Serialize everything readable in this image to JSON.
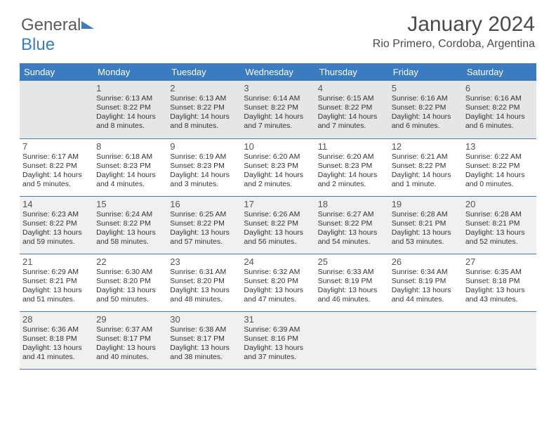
{
  "brand": {
    "part1": "General",
    "part2": "Blue"
  },
  "header": {
    "month_year": "January 2024",
    "location": "Rio Primero, Cordoba, Argentina"
  },
  "style": {
    "accent_color": "#3b7bbf",
    "header_text_color": "#ffffff",
    "body_text_color": "#333333",
    "daynum_color": "#555555",
    "row_alt_bg": "#f0f0f0",
    "row_bg": "#ffffff",
    "page_bg": "#ffffff",
    "font_family": "Arial",
    "title_fontsize_pt": 22,
    "location_fontsize_pt": 12,
    "dayheader_fontsize_pt": 10,
    "daynum_fontsize_pt": 10,
    "info_fontsize_pt": 8
  },
  "day_headers": [
    "Sunday",
    "Monday",
    "Tuesday",
    "Wednesday",
    "Thursday",
    "Friday",
    "Saturday"
  ],
  "weeks": [
    [
      {
        "n": "",
        "sr": "",
        "ss": "",
        "dl": ""
      },
      {
        "n": "1",
        "sr": "6:13 AM",
        "ss": "8:22 PM",
        "dl": "14 hours and 8 minutes."
      },
      {
        "n": "2",
        "sr": "6:13 AM",
        "ss": "8:22 PM",
        "dl": "14 hours and 8 minutes."
      },
      {
        "n": "3",
        "sr": "6:14 AM",
        "ss": "8:22 PM",
        "dl": "14 hours and 7 minutes."
      },
      {
        "n": "4",
        "sr": "6:15 AM",
        "ss": "8:22 PM",
        "dl": "14 hours and 7 minutes."
      },
      {
        "n": "5",
        "sr": "6:16 AM",
        "ss": "8:22 PM",
        "dl": "14 hours and 6 minutes."
      },
      {
        "n": "6",
        "sr": "6:16 AM",
        "ss": "8:22 PM",
        "dl": "14 hours and 6 minutes."
      }
    ],
    [
      {
        "n": "7",
        "sr": "6:17 AM",
        "ss": "8:22 PM",
        "dl": "14 hours and 5 minutes."
      },
      {
        "n": "8",
        "sr": "6:18 AM",
        "ss": "8:23 PM",
        "dl": "14 hours and 4 minutes."
      },
      {
        "n": "9",
        "sr": "6:19 AM",
        "ss": "8:23 PM",
        "dl": "14 hours and 3 minutes."
      },
      {
        "n": "10",
        "sr": "6:20 AM",
        "ss": "8:23 PM",
        "dl": "14 hours and 2 minutes."
      },
      {
        "n": "11",
        "sr": "6:20 AM",
        "ss": "8:23 PM",
        "dl": "14 hours and 2 minutes."
      },
      {
        "n": "12",
        "sr": "6:21 AM",
        "ss": "8:22 PM",
        "dl": "14 hours and 1 minute."
      },
      {
        "n": "13",
        "sr": "6:22 AM",
        "ss": "8:22 PM",
        "dl": "14 hours and 0 minutes."
      }
    ],
    [
      {
        "n": "14",
        "sr": "6:23 AM",
        "ss": "8:22 PM",
        "dl": "13 hours and 59 minutes."
      },
      {
        "n": "15",
        "sr": "6:24 AM",
        "ss": "8:22 PM",
        "dl": "13 hours and 58 minutes."
      },
      {
        "n": "16",
        "sr": "6:25 AM",
        "ss": "8:22 PM",
        "dl": "13 hours and 57 minutes."
      },
      {
        "n": "17",
        "sr": "6:26 AM",
        "ss": "8:22 PM",
        "dl": "13 hours and 56 minutes."
      },
      {
        "n": "18",
        "sr": "6:27 AM",
        "ss": "8:22 PM",
        "dl": "13 hours and 54 minutes."
      },
      {
        "n": "19",
        "sr": "6:28 AM",
        "ss": "8:21 PM",
        "dl": "13 hours and 53 minutes."
      },
      {
        "n": "20",
        "sr": "6:28 AM",
        "ss": "8:21 PM",
        "dl": "13 hours and 52 minutes."
      }
    ],
    [
      {
        "n": "21",
        "sr": "6:29 AM",
        "ss": "8:21 PM",
        "dl": "13 hours and 51 minutes."
      },
      {
        "n": "22",
        "sr": "6:30 AM",
        "ss": "8:20 PM",
        "dl": "13 hours and 50 minutes."
      },
      {
        "n": "23",
        "sr": "6:31 AM",
        "ss": "8:20 PM",
        "dl": "13 hours and 48 minutes."
      },
      {
        "n": "24",
        "sr": "6:32 AM",
        "ss": "8:20 PM",
        "dl": "13 hours and 47 minutes."
      },
      {
        "n": "25",
        "sr": "6:33 AM",
        "ss": "8:19 PM",
        "dl": "13 hours and 46 minutes."
      },
      {
        "n": "26",
        "sr": "6:34 AM",
        "ss": "8:19 PM",
        "dl": "13 hours and 44 minutes."
      },
      {
        "n": "27",
        "sr": "6:35 AM",
        "ss": "8:18 PM",
        "dl": "13 hours and 43 minutes."
      }
    ],
    [
      {
        "n": "28",
        "sr": "6:36 AM",
        "ss": "8:18 PM",
        "dl": "13 hours and 41 minutes."
      },
      {
        "n": "29",
        "sr": "6:37 AM",
        "ss": "8:17 PM",
        "dl": "13 hours and 40 minutes."
      },
      {
        "n": "30",
        "sr": "6:38 AM",
        "ss": "8:17 PM",
        "dl": "13 hours and 38 minutes."
      },
      {
        "n": "31",
        "sr": "6:39 AM",
        "ss": "8:16 PM",
        "dl": "13 hours and 37 minutes."
      },
      {
        "n": "",
        "sr": "",
        "ss": "",
        "dl": ""
      },
      {
        "n": "",
        "sr": "",
        "ss": "",
        "dl": ""
      },
      {
        "n": "",
        "sr": "",
        "ss": "",
        "dl": ""
      }
    ]
  ],
  "labels": {
    "sunrise": "Sunrise:",
    "sunset": "Sunset:",
    "daylight": "Daylight:"
  }
}
